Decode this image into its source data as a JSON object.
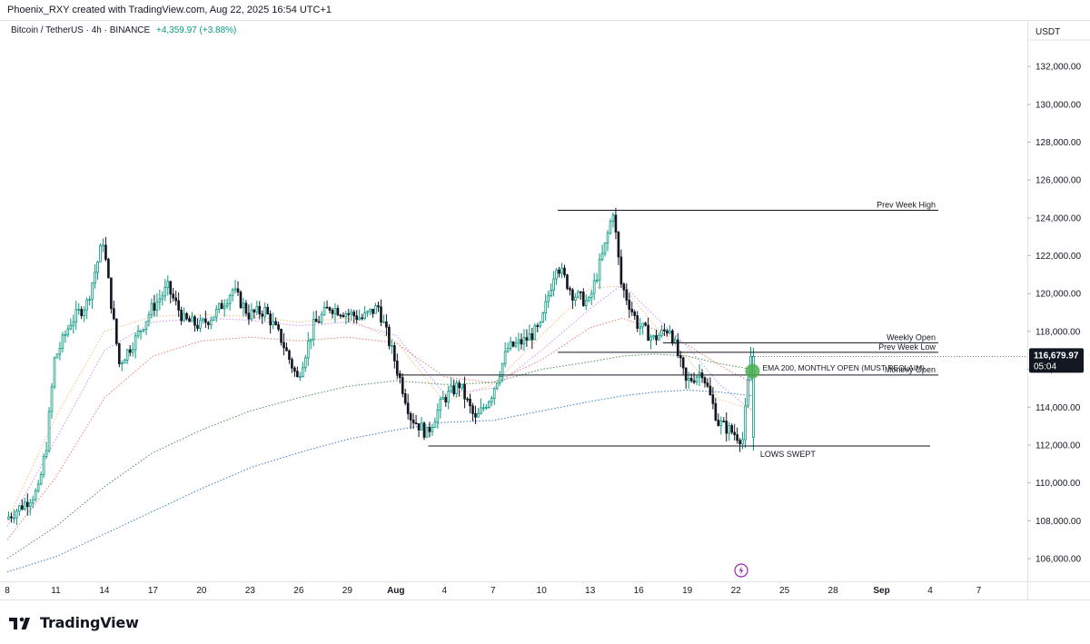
{
  "header": {
    "attribution": "Phoenix_RXY created with TradingView.com, Aug 22, 2025 16:54 UTC+1"
  },
  "symbol": {
    "line": "Bitcoin / TetherUS · 4h · BINANCE",
    "change": "+4,359.97 (+3.88%)"
  },
  "axis": {
    "currency": "USDT"
  },
  "footer": {
    "brand": "TradingView"
  },
  "colors": {
    "up": "#089981",
    "down": "#131722",
    "ema_fast1": "#f7b267",
    "ema_fast2": "#c77dff",
    "ema_mid": "#e26d5a",
    "ema_200": "#2e7d32",
    "ema_slow": "#1565c0",
    "last_price_bg": "#131722",
    "marker": "#4caf50"
  },
  "chart_data": {
    "type": "candlestick",
    "title": "",
    "symbol": "Bitcoin / TetherUS",
    "timeframe": "4h",
    "exchange": "BINANCE",
    "ylim": [
      104800,
      133400
    ],
    "xlim": [
      0,
      63
    ],
    "y_ticks": [
      106000,
      108000,
      110000,
      112000,
      114000,
      116000,
      118000,
      120000,
      122000,
      124000,
      126000,
      128000,
      130000,
      132000
    ],
    "y_tick_labels": [
      "106,000.00",
      "108,000.00",
      "110,000.00",
      "112,000.00",
      "114,000.00",
      "116,000.00",
      "118,000.00",
      "120,000.00",
      "122,000.00",
      "124,000.00",
      "126,000.00",
      "128,000.00",
      "130,000.00",
      "132,000.00"
    ],
    "x_ticks": [
      0,
      3,
      6,
      9,
      12,
      15,
      18,
      21,
      24,
      27,
      30,
      33,
      36,
      39,
      42,
      45,
      48,
      51,
      54,
      57,
      60
    ],
    "x_tick_labels": [
      "8",
      "11",
      "14",
      "17",
      "20",
      "23",
      "26",
      "29",
      "Aug",
      "4",
      "7",
      "10",
      "13",
      "16",
      "19",
      "22",
      "25",
      "28",
      "Sep",
      "4",
      "7"
    ],
    "last_price": {
      "value": 116679.97,
      "label": "116,679.97",
      "countdown": "05:04"
    },
    "price_path": [
      [
        0,
        108100
      ],
      [
        1,
        108800
      ],
      [
        2,
        109600
      ],
      [
        2.5,
        112000
      ],
      [
        3,
        116500
      ],
      [
        4,
        118500
      ],
      [
        5,
        119500
      ],
      [
        6,
        122800
      ],
      [
        6.5,
        119500
      ],
      [
        7,
        116300
      ],
      [
        8,
        117600
      ],
      [
        9,
        119200
      ],
      [
        10,
        120300
      ],
      [
        11,
        118600
      ],
      [
        12,
        118300
      ],
      [
        13,
        119000
      ],
      [
        14,
        120200
      ],
      [
        15,
        118900
      ],
      [
        16,
        119100
      ],
      [
        17,
        117600
      ],
      [
        18,
        115500
      ],
      [
        19,
        118300
      ],
      [
        20,
        119300
      ],
      [
        21,
        119000
      ],
      [
        22,
        118700
      ],
      [
        23,
        119300
      ],
      [
        24,
        116500
      ],
      [
        25,
        113500
      ],
      [
        26,
        112600
      ],
      [
        27,
        114400
      ],
      [
        28,
        115200
      ],
      [
        29,
        113300
      ],
      [
        30,
        114700
      ],
      [
        31,
        117100
      ],
      [
        32,
        117500
      ],
      [
        33,
        118200
      ],
      [
        34,
        121600
      ],
      [
        35,
        120000
      ],
      [
        36,
        119500
      ],
      [
        37,
        122500
      ],
      [
        37.5,
        124400
      ],
      [
        38,
        120500
      ],
      [
        39,
        118400
      ],
      [
        40,
        117600
      ],
      [
        41,
        118200
      ],
      [
        42,
        115300
      ],
      [
        43,
        115900
      ],
      [
        44,
        113200
      ],
      [
        45,
        112600
      ],
      [
        45.5,
        112300
      ],
      [
        46,
        116680
      ]
    ],
    "series": [
      {
        "name": "",
        "style": "ema-fast-1",
        "values": [
          [
            0,
            108000
          ],
          [
            3,
            113500
          ],
          [
            6,
            118000
          ],
          [
            9,
            118800
          ],
          [
            12,
            118900
          ],
          [
            15,
            118800
          ],
          [
            18,
            118500
          ],
          [
            21,
            118700
          ],
          [
            24,
            117500
          ],
          [
            27,
            114300
          ],
          [
            30,
            115200
          ],
          [
            33,
            117800
          ],
          [
            36,
            120300
          ],
          [
            38,
            120400
          ],
          [
            40,
            118300
          ],
          [
            42,
            116600
          ],
          [
            44,
            114400
          ],
          [
            46,
            113900
          ]
        ]
      },
      {
        "name": "",
        "style": "ema-fast-2",
        "values": [
          [
            0,
            107700
          ],
          [
            3,
            112300
          ],
          [
            6,
            117000
          ],
          [
            9,
            118500
          ],
          [
            12,
            118700
          ],
          [
            15,
            118600
          ],
          [
            18,
            118300
          ],
          [
            21,
            118500
          ],
          [
            24,
            117800
          ],
          [
            27,
            114700
          ],
          [
            30,
            115000
          ],
          [
            33,
            117000
          ],
          [
            36,
            119200
          ],
          [
            38,
            120500
          ],
          [
            40,
            118800
          ],
          [
            42,
            117200
          ],
          [
            44,
            115200
          ],
          [
            46,
            113800
          ]
        ]
      },
      {
        "name": "",
        "style": "ema-mid",
        "values": [
          [
            0,
            107000
          ],
          [
            3,
            110300
          ],
          [
            6,
            114500
          ],
          [
            9,
            116700
          ],
          [
            12,
            117500
          ],
          [
            15,
            117700
          ],
          [
            18,
            117500
          ],
          [
            21,
            117700
          ],
          [
            24,
            117400
          ],
          [
            27,
            115600
          ],
          [
            30,
            115300
          ],
          [
            33,
            116500
          ],
          [
            36,
            118200
          ],
          [
            38,
            118700
          ],
          [
            40,
            118100
          ],
          [
            42,
            117300
          ],
          [
            44,
            116200
          ],
          [
            46,
            115300
          ]
        ]
      },
      {
        "name": "",
        "style": "ema-200",
        "values": [
          [
            0,
            106000
          ],
          [
            3,
            107700
          ],
          [
            6,
            109800
          ],
          [
            9,
            111600
          ],
          [
            12,
            112800
          ],
          [
            15,
            113800
          ],
          [
            18,
            114500
          ],
          [
            21,
            115100
          ],
          [
            24,
            115400
          ],
          [
            27,
            115200
          ],
          [
            30,
            115300
          ],
          [
            33,
            116000
          ],
          [
            36,
            116400
          ],
          [
            38,
            116700
          ],
          [
            40,
            116800
          ],
          [
            42,
            116700
          ],
          [
            44,
            116300
          ],
          [
            46,
            116000
          ]
        ]
      },
      {
        "name": "",
        "style": "ema-slow",
        "values": [
          [
            0,
            105300
          ],
          [
            3,
            106100
          ],
          [
            6,
            107300
          ],
          [
            9,
            108500
          ],
          [
            12,
            109700
          ],
          [
            15,
            110800
          ],
          [
            18,
            111600
          ],
          [
            21,
            112300
          ],
          [
            24,
            112800
          ],
          [
            27,
            113200
          ],
          [
            30,
            113300
          ],
          [
            33,
            113800
          ],
          [
            36,
            114300
          ],
          [
            38,
            114600
          ],
          [
            40,
            114800
          ],
          [
            42,
            114900
          ],
          [
            44,
            114800
          ],
          [
            46,
            114600
          ]
        ]
      }
    ],
    "levels": [
      {
        "label": "Prev Week High",
        "value": 124400,
        "x_start": 34,
        "x_end": 57.5
      },
      {
        "label": "Weekly Open",
        "value": 117400,
        "x_start": 40.5,
        "x_end": 57.5
      },
      {
        "label": "Prev Week Low",
        "value": 116900,
        "x_start": 34,
        "x_end": 57.5
      },
      {
        "label": "Monthly Open",
        "value": 115700,
        "x_start": 24,
        "x_end": 57.5
      },
      {
        "label": "LOWS SWEPT",
        "value": 111950,
        "x_start": 26,
        "x_end": 57
      }
    ],
    "annotations": [
      {
        "text": "EMA 200, MONTHLY OPEN (MUST RECLAIM)",
        "x": 46,
        "y": 116000
      }
    ]
  }
}
